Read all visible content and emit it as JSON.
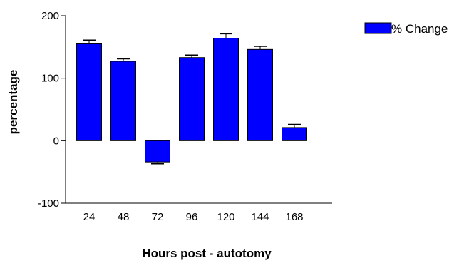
{
  "chart_data": {
    "type": "bar",
    "categories": [
      "24",
      "48",
      "72",
      "96",
      "120",
      "144",
      "168"
    ],
    "series": [
      {
        "name": "% Change",
        "values": [
          155,
          127,
          -34,
          133,
          164,
          146,
          21
        ],
        "errors": [
          6,
          4,
          3,
          4,
          7,
          5,
          5
        ],
        "color": "#0000ff"
      }
    ],
    "xlabel": "Hours post - autotomy",
    "ylabel": "percentage",
    "ylim": [
      -100,
      200
    ],
    "yticks": [
      -100,
      0,
      100,
      200
    ],
    "ytick_labels": [
      "-100",
      "0",
      "100",
      "200"
    ],
    "grid": false,
    "legend_position": "top-right"
  }
}
